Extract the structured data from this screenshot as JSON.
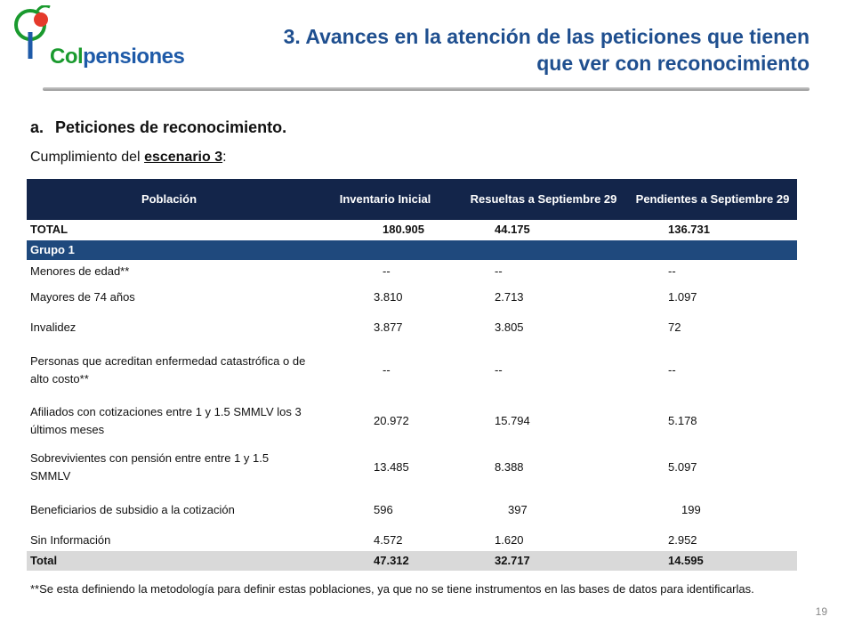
{
  "logo": {
    "text_part1": "Col",
    "text_part2": "pensiones"
  },
  "header": {
    "title_line1": "3. Avances en la atención de las peticiones que tienen",
    "title_line2": "que ver con reconocimiento"
  },
  "section": {
    "marker": "a.",
    "heading": "Peticiones de reconocimiento.",
    "caption_prefix": "Cumplimiento del ",
    "caption_link": "escenario 3",
    "caption_suffix": ":"
  },
  "table": {
    "headers": [
      "Población",
      "Inventario Inicial",
      "Resueltas a Septiembre 29",
      "Pendientes a Septiembre 29"
    ],
    "total_top": [
      "TOTAL",
      "180.905",
      "44.175",
      "136.731"
    ],
    "group_label": "Grupo 1",
    "rows": [
      [
        "Menores de edad**",
        "--",
        "--",
        "--"
      ],
      [
        "Mayores de 74 años",
        "3.810",
        "2.713",
        "1.097"
      ],
      [
        "Invalidez",
        "3.877",
        "3.805",
        "72"
      ],
      [
        "Personas que acreditan enfermedad catastrófica o de alto costo**",
        "--",
        "--",
        "--"
      ],
      [
        "Afiliados con cotizaciones entre 1 y 1.5 SMMLV los 3 últimos meses",
        "20.972",
        "15.794",
        "5.178"
      ],
      [
        "Sobrevivientes con pensión entre entre 1 y 1.5 SMMLV",
        "13.485",
        "8.388",
        "5.097"
      ],
      [
        "Beneficiarios de subsidio a la cotización",
        "596",
        "397",
        "199"
      ],
      [
        "Sin Información",
        "4.572",
        "1.620",
        "2.952"
      ]
    ],
    "total_bottom": [
      "Total",
      "47.312",
      "32.717",
      "14.595"
    ]
  },
  "footnote": "**Se esta definiendo la metodología para definir estas poblaciones, ya que no se tiene instrumentos en las bases de datos para identificarlas.",
  "page_number": "19",
  "colors": {
    "header_bg": "#13254a",
    "group_bg": "#1f497d",
    "title": "#1f4f8f",
    "total_bg": "#d9d9d9"
  }
}
